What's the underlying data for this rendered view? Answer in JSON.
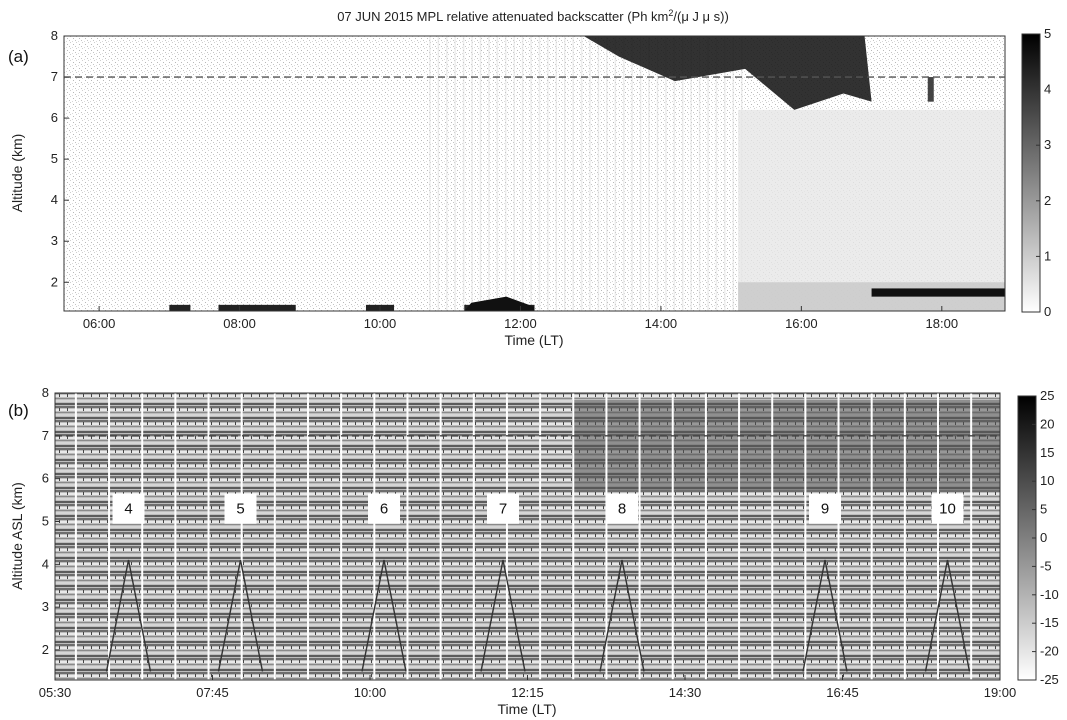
{
  "chart_data": [
    {
      "panel": "(a)",
      "type": "heatmap",
      "title_main": "07 JUN 2015 MPL relative attenuated backscatter (Ph km",
      "title_sup": "2",
      "title_end": "/(μ J μ s))",
      "xlabel": "Time (LT)",
      "ylabel": "Altitude (km)",
      "x_ticks": [
        "06:00",
        "08:00",
        "10:00",
        "12:00",
        "14:00",
        "16:00",
        "18:00"
      ],
      "x_tick_hours": [
        6,
        8,
        10,
        12,
        14,
        16,
        18
      ],
      "xlim_hours": [
        5.5,
        18.9
      ],
      "y_ticks": [
        "2",
        "3",
        "4",
        "5",
        "6",
        "7",
        "8"
      ],
      "ylim": [
        1.3,
        8
      ],
      "reference_line_altitude": 7,
      "colorbar_ticks": [
        "0",
        "1",
        "2",
        "3",
        "4",
        "5"
      ],
      "colorbar_range": [
        0,
        5
      ],
      "colorbar_direction": "white-low-black-high"
    },
    {
      "panel": "(b)",
      "type": "heatmap",
      "xlabel": "Time (LT)",
      "ylabel": "Altitude ASL (km)",
      "x_ticks": [
        "05:30",
        "07:45",
        "10:00",
        "12:15",
        "14:30",
        "16:45",
        "19:00"
      ],
      "x_tick_hours": [
        5.5,
        7.75,
        10,
        12.25,
        14.5,
        16.75,
        19
      ],
      "xlim_hours": [
        5.5,
        19
      ],
      "y_ticks": [
        "2",
        "3",
        "4",
        "5",
        "6",
        "7",
        "8"
      ],
      "ylim": [
        1.3,
        8
      ],
      "reference_line_altitude": 7,
      "colorbar_ticks": [
        "25",
        "20",
        "15",
        "10",
        "5",
        "0",
        "-5",
        "-10",
        "-15",
        "-20",
        "-25"
      ],
      "colorbar_range": [
        -25,
        25
      ],
      "colorbar_direction": "white-low-black-high",
      "annotations": [
        {
          "label": "4",
          "hour": 6.55
        },
        {
          "label": "5",
          "hour": 8.15
        },
        {
          "label": "6",
          "hour": 10.2
        },
        {
          "label": "7",
          "hour": 11.9
        },
        {
          "label": "8",
          "hour": 13.6
        },
        {
          "label": "9",
          "hour": 16.5
        },
        {
          "label": "10",
          "hour": 18.25
        }
      ]
    }
  ]
}
